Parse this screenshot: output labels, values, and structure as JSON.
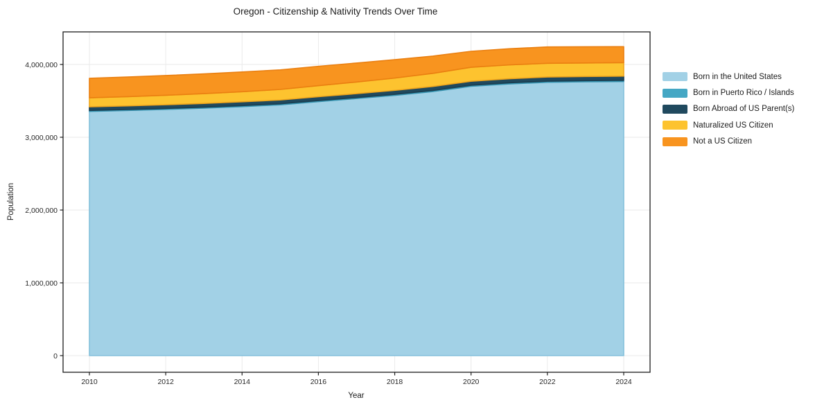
{
  "title": "Oregon - Citizenship & Nativity Trends Over Time",
  "chart_data": {
    "type": "area",
    "stacked": true,
    "title": "Oregon - Citizenship & Nativity Trends Over Time",
    "xlabel": "Year",
    "ylabel": "Population",
    "grid": true,
    "legend_position": "right of plot, upper",
    "x": [
      2010,
      2011,
      2012,
      2013,
      2014,
      2015,
      2016,
      2017,
      2018,
      2019,
      2020,
      2021,
      2022,
      2023,
      2024
    ],
    "series": [
      {
        "name": "Born in the United States",
        "color": "#A2D1E6",
        "edge_color": "#84C0DB",
        "values": [
          3355000,
          3368000,
          3383000,
          3400000,
          3421000,
          3446000,
          3490000,
          3532000,
          3575000,
          3628000,
          3700000,
          3733000,
          3755000,
          3762000,
          3766000
        ]
      },
      {
        "name": "Born in Puerto Rico / Islands",
        "color": "#45A7C4",
        "edge_color": "#3794B1",
        "values": [
          13000,
          13000,
          13000,
          14000,
          14000,
          14000,
          14000,
          14000,
          15000,
          15000,
          15000,
          15000,
          16000,
          16000,
          16000
        ]
      },
      {
        "name": "Born Abroad of US Parent(s)",
        "color": "#20495E",
        "edge_color": "#1A3D4F",
        "values": [
          50000,
          50000,
          51000,
          51000,
          52000,
          52000,
          53000,
          53000,
          54000,
          55000,
          55000,
          56000,
          57000,
          57000,
          58000
        ]
      },
      {
        "name": "Naturalized US Citizen",
        "color": "#FDC32F",
        "edge_color": "#F0A51C",
        "values": [
          124000,
          127000,
          130000,
          134000,
          139000,
          145000,
          152000,
          160000,
          169000,
          180000,
          191000,
          190000,
          188000,
          186000,
          185000
        ]
      },
      {
        "name": "Not a US Citizen",
        "color": "#F8941F",
        "edge_color": "#EA7F10",
        "values": [
          268000,
          270000,
          271000,
          272000,
          271000,
          269000,
          266000,
          261000,
          253000,
          237000,
          220000,
          222000,
          225000,
          222000,
          220000
        ]
      }
    ],
    "x_ticks": [
      2010,
      2012,
      2014,
      2016,
      2018,
      2020,
      2022,
      2024
    ],
    "y_ticks": [
      0,
      1000000,
      2000000,
      3000000,
      4000000
    ],
    "y_tick_labels": [
      "0",
      "1,000,000",
      "2,000,000",
      "3,000,000",
      "4,000,000"
    ],
    "xlim": [
      2009.31,
      2024.69
    ],
    "ylim": [
      -228600,
      4447600
    ]
  }
}
